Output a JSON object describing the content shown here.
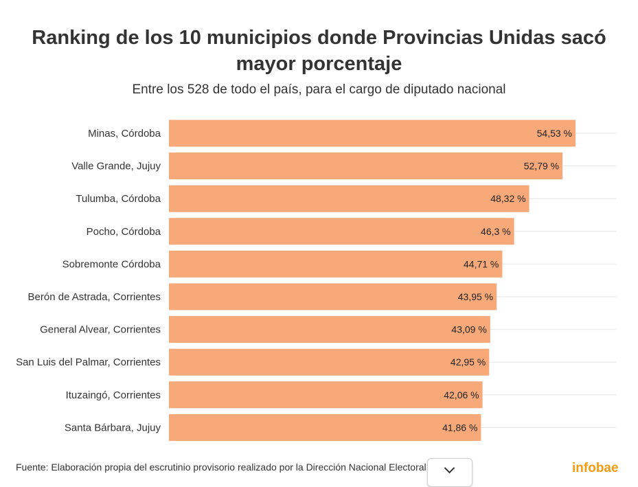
{
  "title": "Ranking de los 10 municipios donde Provincias Unidas sacó mayor porcentaje",
  "subtitle": "Entre los 528 de todo el país, para el cargo de diputado nacional",
  "footer": {
    "source": "Fuente: Elaboración propia del escrutinio provisorio realizado por la Dirección Nacional Electoral",
    "brand": "infobae"
  },
  "colors": {
    "bar": "#f7a979",
    "grid": "#e6e6e6",
    "brand": "#f39c12"
  },
  "chart_data": {
    "type": "bar",
    "orientation": "horizontal",
    "categories": [
      "Minas, Córdoba",
      "Valle Grande, Jujuy",
      "Tulumba, Córdoba",
      "Pocho, Córdoba",
      "Sobremonte Córdoba",
      "Berón de Astrada, Corrientes",
      "General Alvear, Corrientes",
      "San Luis del Palmar, Corrientes",
      "Ituzaingó, Corrientes",
      "Santa Bárbara, Jujuy"
    ],
    "values": [
      54.53,
      52.79,
      48.32,
      46.3,
      44.71,
      43.95,
      43.09,
      42.95,
      42.06,
      41.86
    ],
    "value_labels": [
      "54,53 %",
      "52,79 %",
      "48,32 %",
      "46,3 %",
      "44,71 %",
      "43,95 %",
      "43,09 %",
      "42,95 %",
      "42,06 %",
      "41,86 %"
    ],
    "xlim": [
      0,
      60
    ],
    "grid": true,
    "legend": "none"
  }
}
